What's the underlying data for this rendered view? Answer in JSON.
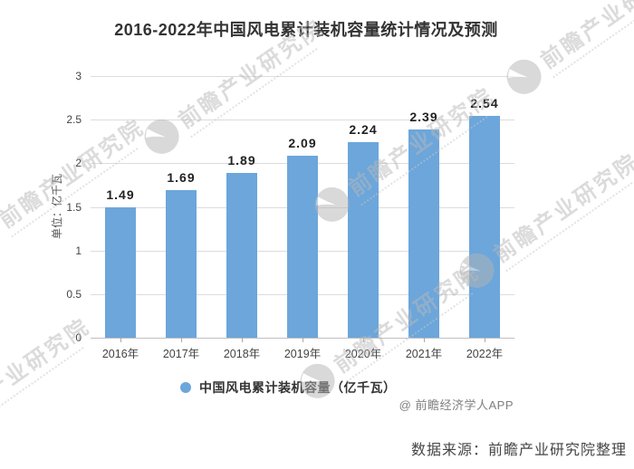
{
  "header": {
    "title": "2016-2022年中国风电累计装机容量统计情况及预测"
  },
  "chart_data": {
    "type": "bar",
    "title": "2016-2022年中国风电累计装机容量统计情况及预测",
    "categories": [
      "2016年",
      "2017年",
      "2018年",
      "2019年",
      "2020年",
      "2021年",
      "2022年"
    ],
    "values": [
      1.49,
      1.69,
      1.89,
      2.09,
      2.24,
      2.39,
      2.54
    ],
    "value_labels": [
      "1.49",
      "1.69",
      "1.89",
      "2.09",
      "2.24",
      "2.39",
      "2.54"
    ],
    "series_name": "中国风电累计装机容量（亿千瓦）",
    "xlabel": "",
    "ylabel": "单位：亿千瓦",
    "ylim": [
      0,
      3
    ],
    "yticks": [
      0,
      0.5,
      1,
      1.5,
      2,
      2.5,
      3
    ],
    "ytick_labels": [
      "0",
      "0.5",
      "1",
      "1.5",
      "2",
      "2.5",
      "3"
    ],
    "grid": true,
    "legend_position": "bottom",
    "colors": {
      "bar": "#6CA6DB",
      "grid": "#dcdcdc",
      "axis": "#bfbfbf"
    }
  },
  "legend": {
    "marker": "circle-icon",
    "marker_color": "#6CA6DB",
    "label": "中国风电累计装机容量（亿千瓦）"
  },
  "attribution": "@ 前瞻经济学人APP",
  "footer": {
    "source": "数据来源：前瞻产业研究院整理"
  },
  "watermark": {
    "text": "前瞻产业研究院",
    "logo": "qianzhan-logo-icon"
  }
}
